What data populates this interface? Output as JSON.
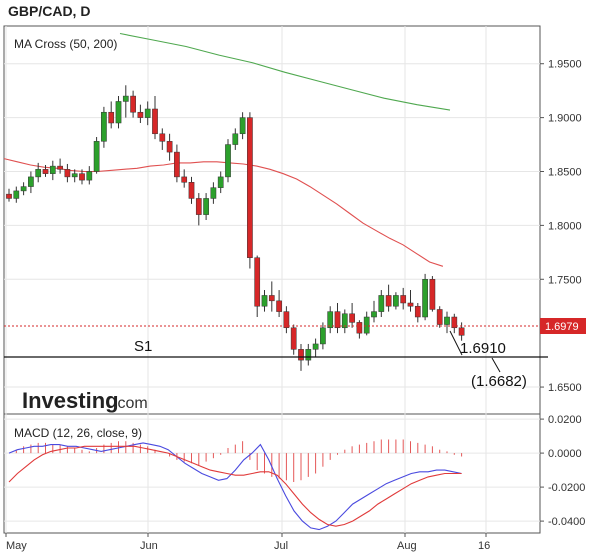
{
  "header": {
    "title": "GBP/CAD, D"
  },
  "price_panel": {
    "indicator_label": "MA Cross (50, 200)",
    "y_ticks": [
      "1.9500",
      "1.9000",
      "1.8500",
      "1.8000",
      "1.7500",
      "1.6500"
    ],
    "current_price_label": "1.6979",
    "support_label": "S1",
    "target_label": "1.6910",
    "support_level_label": "(1.6682)"
  },
  "macd_panel": {
    "indicator_label": "MACD (12, 26, close, 9)",
    "y_ticks": [
      "0.0200",
      "0.0000",
      "-0.0200",
      "-0.0400"
    ]
  },
  "x_axis": {
    "ticks": [
      "May",
      "Jun",
      "Jul",
      "Aug",
      "16"
    ]
  },
  "logo": {
    "brand": "Investing",
    "suffix": ".com"
  },
  "colors": {
    "bull": "#2ca02c",
    "bear": "#d62728",
    "ma50": "#e05050",
    "ma200": "#4fa84f",
    "macd": "#4a4adf",
    "signal": "#e03a3a",
    "price_line": "#d62728"
  },
  "chart_data": [
    {
      "type": "candlestick",
      "title": "GBP/CAD, D",
      "ylim": [
        1.625,
        1.985
      ],
      "y_ticks": [
        1.95,
        1.9,
        1.85,
        1.8,
        1.75,
        1.65
      ],
      "x_ticks": [
        "May",
        "Jun",
        "Jul",
        "Aug",
        "16"
      ],
      "current_price": 1.6979,
      "support_S1": 1.6682,
      "target": 1.691,
      "candles": [
        [
          1.829,
          1.834,
          1.822,
          1.825
        ],
        [
          1.825,
          1.836,
          1.821,
          1.832
        ],
        [
          1.832,
          1.84,
          1.828,
          1.836
        ],
        [
          1.836,
          1.85,
          1.83,
          1.845
        ],
        [
          1.845,
          1.858,
          1.84,
          1.852
        ],
        [
          1.852,
          1.856,
          1.845,
          1.848
        ],
        [
          1.848,
          1.86,
          1.842,
          1.855
        ],
        [
          1.855,
          1.862,
          1.848,
          1.852
        ],
        [
          1.852,
          1.857,
          1.84,
          1.845
        ],
        [
          1.845,
          1.852,
          1.84,
          1.848
        ],
        [
          1.848,
          1.852,
          1.838,
          1.842
        ],
        [
          1.842,
          1.855,
          1.838,
          1.85
        ],
        [
          1.85,
          1.882,
          1.848,
          1.878
        ],
        [
          1.878,
          1.91,
          1.872,
          1.905
        ],
        [
          1.905,
          1.915,
          1.89,
          1.895
        ],
        [
          1.895,
          1.92,
          1.89,
          1.915
        ],
        [
          1.915,
          1.93,
          1.9,
          1.92
        ],
        [
          1.92,
          1.925,
          1.9,
          1.905
        ],
        [
          1.905,
          1.912,
          1.895,
          1.9
        ],
        [
          1.9,
          1.915,
          1.893,
          1.908
        ],
        [
          1.908,
          1.92,
          1.88,
          1.885
        ],
        [
          1.885,
          1.89,
          1.87,
          1.878
        ],
        [
          1.878,
          1.885,
          1.86,
          1.868
        ],
        [
          1.868,
          1.875,
          1.84,
          1.845
        ],
        [
          1.845,
          1.852,
          1.835,
          1.84
        ],
        [
          1.84,
          1.845,
          1.82,
          1.825
        ],
        [
          1.825,
          1.83,
          1.8,
          1.81
        ],
        [
          1.81,
          1.83,
          1.805,
          1.825
        ],
        [
          1.825,
          1.84,
          1.82,
          1.835
        ],
        [
          1.835,
          1.85,
          1.83,
          1.845
        ],
        [
          1.845,
          1.88,
          1.84,
          1.875
        ],
        [
          1.875,
          1.89,
          1.87,
          1.885
        ],
        [
          1.885,
          1.905,
          1.88,
          1.9
        ],
        [
          1.9,
          1.905,
          1.76,
          1.77
        ],
        [
          1.77,
          1.772,
          1.715,
          1.725
        ],
        [
          1.725,
          1.74,
          1.72,
          1.735
        ],
        [
          1.735,
          1.748,
          1.72,
          1.73
        ],
        [
          1.73,
          1.74,
          1.715,
          1.72
        ],
        [
          1.72,
          1.725,
          1.7,
          1.705
        ],
        [
          1.705,
          1.708,
          1.68,
          1.685
        ],
        [
          1.685,
          1.69,
          1.665,
          1.675
        ],
        [
          1.675,
          1.69,
          1.67,
          1.685
        ],
        [
          1.685,
          1.695,
          1.678,
          1.69
        ],
        [
          1.69,
          1.71,
          1.685,
          1.705
        ],
        [
          1.705,
          1.725,
          1.7,
          1.72
        ],
        [
          1.72,
          1.728,
          1.7,
          1.705
        ],
        [
          1.705,
          1.722,
          1.7,
          1.718
        ],
        [
          1.718,
          1.728,
          1.705,
          1.71
        ],
        [
          1.71,
          1.712,
          1.695,
          1.7
        ],
        [
          1.7,
          1.72,
          1.698,
          1.715
        ],
        [
          1.715,
          1.73,
          1.71,
          1.72
        ],
        [
          1.72,
          1.74,
          1.715,
          1.735
        ],
        [
          1.735,
          1.745,
          1.72,
          1.725
        ],
        [
          1.725,
          1.738,
          1.722,
          1.735
        ],
        [
          1.735,
          1.742,
          1.722,
          1.728
        ],
        [
          1.728,
          1.74,
          1.72,
          1.725
        ],
        [
          1.725,
          1.728,
          1.71,
          1.715
        ],
        [
          1.715,
          1.755,
          1.712,
          1.75
        ],
        [
          1.75,
          1.753,
          1.72,
          1.722
        ],
        [
          1.722,
          1.725,
          1.705,
          1.708
        ],
        [
          1.708,
          1.72,
          1.7,
          1.715
        ],
        [
          1.715,
          1.718,
          1.7,
          1.705
        ],
        [
          1.705,
          1.71,
          1.693,
          1.698
        ]
      ],
      "ma50": [
        1.862,
        1.859,
        1.856,
        1.854,
        1.853,
        1.851,
        1.85,
        1.85,
        1.851,
        1.852,
        1.853,
        1.855,
        1.856,
        1.858,
        1.858,
        1.859,
        1.859,
        1.858,
        1.857,
        1.855,
        1.852,
        1.848,
        1.843,
        1.836,
        1.828,
        1.82,
        1.811,
        1.802,
        1.795,
        1.788,
        1.782,
        1.774,
        1.766,
        1.762
      ],
      "ma200": [
        1.978,
        1.972,
        1.966,
        1.958,
        1.951,
        1.942,
        1.934,
        1.926,
        1.918,
        1.912,
        1.907
      ],
      "series": [
        {
          "name": "MA 50"
        },
        {
          "name": "MA 200"
        }
      ]
    },
    {
      "type": "macd",
      "title": "MACD (12, 26, close, 9)",
      "ylim": [
        -0.047,
        0.023
      ],
      "y_ticks": [
        0.02,
        0.0,
        -0.02,
        -0.04
      ],
      "histogram": [
        0.0,
        0.002,
        0.004,
        0.005,
        0.006,
        0.006,
        0.005,
        0.005,
        0.004,
        0.003,
        0.002,
        0.001,
        0.003,
        0.005,
        0.006,
        0.007,
        0.007,
        0.006,
        0.005,
        0.004,
        0.002,
        0.0,
        -0.002,
        -0.004,
        -0.005,
        -0.006,
        -0.007,
        -0.005,
        -0.003,
        -0.001,
        0.003,
        0.005,
        0.007,
        -0.004,
        -0.01,
        -0.012,
        -0.014,
        -0.015,
        -0.016,
        -0.017,
        -0.016,
        -0.014,
        -0.012,
        -0.008,
        -0.004,
        -0.001,
        0.002,
        0.004,
        0.005,
        0.006,
        0.007,
        0.008,
        0.008,
        0.008,
        0.008,
        0.007,
        0.006,
        0.005,
        0.004,
        0.002,
        0.001,
        -0.001,
        -0.002
      ],
      "macd": [
        0.0,
        0.002,
        0.003,
        0.004,
        0.004,
        0.005,
        0.005,
        0.004,
        0.004,
        0.003,
        0.002,
        0.001,
        0.002,
        0.003,
        0.004,
        0.005,
        0.006,
        0.005,
        0.004,
        0.002,
        -0.002,
        -0.006,
        -0.009,
        -0.012,
        -0.014,
        -0.016,
        -0.015,
        -0.01,
        -0.004,
        0.0,
        0.005,
        -0.004,
        -0.015,
        -0.025,
        -0.034,
        -0.04,
        -0.044,
        -0.045,
        -0.043,
        -0.04,
        -0.035,
        -0.03,
        -0.027,
        -0.024,
        -0.021,
        -0.018,
        -0.016,
        -0.014,
        -0.012,
        -0.011,
        -0.011,
        -0.01,
        -0.01,
        -0.011,
        -0.012
      ],
      "signal": [
        -0.017,
        -0.012,
        -0.008,
        -0.004,
        -0.001,
        0.001,
        0.002,
        0.003,
        0.003,
        0.004,
        0.004,
        0.004,
        0.004,
        0.004,
        0.004,
        0.004,
        0.003,
        0.002,
        0.001,
        0.0,
        -0.002,
        -0.004,
        -0.006,
        -0.008,
        -0.01,
        -0.011,
        -0.012,
        -0.013,
        -0.013,
        -0.012,
        -0.011,
        -0.011,
        -0.013,
        -0.018,
        -0.024,
        -0.03,
        -0.035,
        -0.039,
        -0.042,
        -0.043,
        -0.042,
        -0.04,
        -0.037,
        -0.034,
        -0.03,
        -0.027,
        -0.024,
        -0.021,
        -0.018,
        -0.016,
        -0.014,
        -0.013,
        -0.012,
        -0.012,
        -0.012
      ],
      "series": [
        {
          "name": "MACD"
        },
        {
          "name": "Signal"
        }
      ]
    }
  ]
}
